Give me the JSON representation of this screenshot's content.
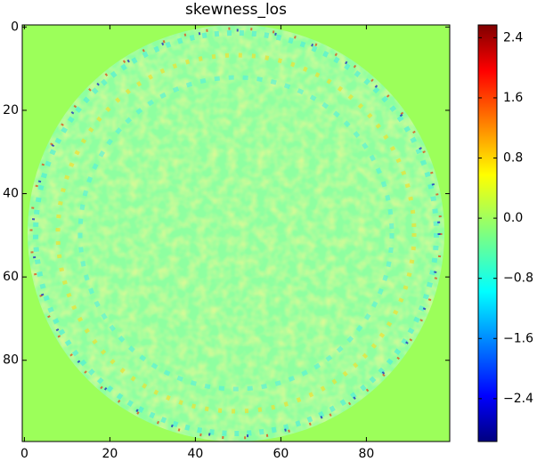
{
  "chart_data": {
    "type": "heatmap",
    "title": "skewness_los",
    "xlim": [
      -0.5,
      99.5
    ],
    "ylim": [
      99.5,
      -0.5
    ],
    "xticks": [
      0,
      20,
      40,
      60,
      80
    ],
    "yticks": [
      0,
      20,
      40,
      60,
      80
    ],
    "colormap": "jet",
    "clim": [
      -2.97,
      2.57
    ],
    "colorbar_ticks": [
      {
        "value": -2.4,
        "label": "−2.4"
      },
      {
        "value": -1.6,
        "label": "−1.6"
      },
      {
        "value": -0.8,
        "label": "−0.8"
      },
      0.0,
      0.8,
      1.6,
      2.4
    ]
  }
}
